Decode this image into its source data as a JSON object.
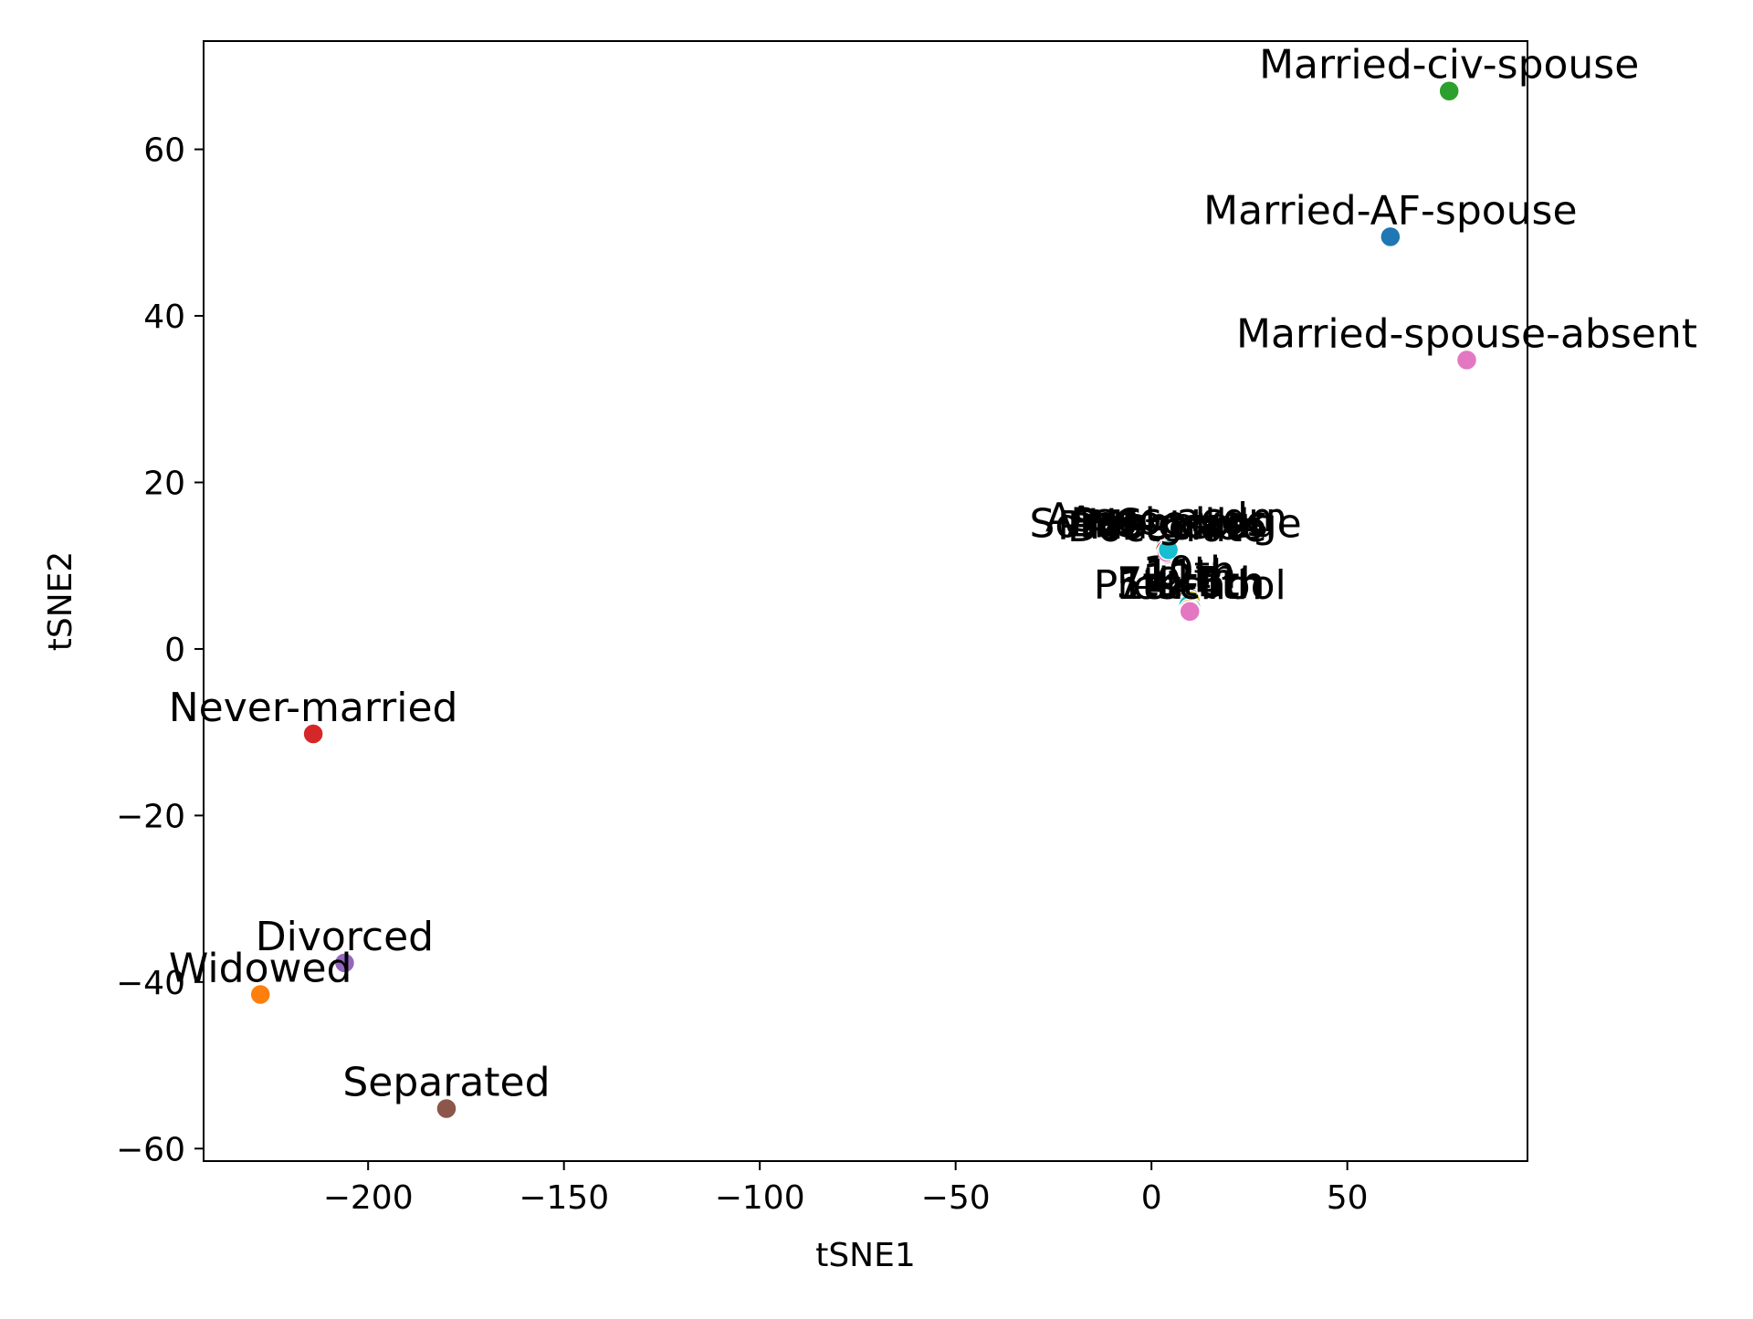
{
  "chart_data": {
    "type": "scatter",
    "title": "",
    "xlabel": "tSNE1",
    "ylabel": "tSNE2",
    "xlim": [
      -242,
      96
    ],
    "ylim": [
      -61.5,
      73
    ],
    "xticks": [
      -200,
      -150,
      -100,
      -50,
      0,
      50
    ],
    "yticks": [
      -60,
      -40,
      -20,
      0,
      20,
      40,
      60
    ],
    "xtick_labels": [
      "−200",
      "−150",
      "−100",
      "−50",
      "0",
      "50"
    ],
    "ytick_labels": [
      "−60",
      "−40",
      "−20",
      "0",
      "20",
      "40",
      "60"
    ],
    "grid": false,
    "points": [
      {
        "label": "Married-civ-spouse",
        "x": 76,
        "y": 67,
        "color": "#2ca02c"
      },
      {
        "label": "Married-AF-spouse",
        "x": 61,
        "y": 49.5,
        "color": "#1f77b4"
      },
      {
        "label": "Married-spouse-absent",
        "x": 80.5,
        "y": 34.7,
        "color": "#e377c2"
      },
      {
        "label": "Never-married",
        "x": -214,
        "y": -10.2,
        "color": "#d62728"
      },
      {
        "label": "Divorced",
        "x": -206,
        "y": -37.7,
        "color": "#9467bd"
      },
      {
        "label": "Widowed",
        "x": -227.5,
        "y": -41.5,
        "color": "#ff7f0e"
      },
      {
        "label": "Separated",
        "x": -180,
        "y": -55.2,
        "color": "#8c564b"
      },
      {
        "label": "Assoc-acdm",
        "x": 3.8,
        "y": 12.6,
        "color": "#1f77b4"
      },
      {
        "label": "Assoc-voc",
        "x": 4.1,
        "y": 12.2,
        "color": "#ff7f0e"
      },
      {
        "label": "Bachelors",
        "x": 4.5,
        "y": 12.0,
        "color": "#2ca02c"
      },
      {
        "label": "Some-college",
        "x": 3.6,
        "y": 11.9,
        "color": "#d62728"
      },
      {
        "label": "Masters",
        "x": 4.2,
        "y": 11.7,
        "color": "#9467bd"
      },
      {
        "label": "Doctorate",
        "x": 4.0,
        "y": 11.4,
        "color": "#8c564b"
      },
      {
        "label": "Prof-school",
        "x": 3.9,
        "y": 11.6,
        "color": "#e377c2"
      },
      {
        "label": "HS-grad",
        "x": 4.3,
        "y": 11.9,
        "color": "#17becf"
      },
      {
        "label": "10th",
        "x": 9.6,
        "y": 6.2,
        "color": "#7f7f7f"
      },
      {
        "label": "11th",
        "x": 9.9,
        "y": 5.8,
        "color": "#bcbd22"
      },
      {
        "label": "12th",
        "x": 9.5,
        "y": 5.3,
        "color": "#17becf"
      },
      {
        "label": "7th-8th",
        "x": 10.1,
        "y": 4.9,
        "color": "#1f77b4"
      },
      {
        "label": "9th",
        "x": 9.7,
        "y": 4.8,
        "color": "#ff7f0e"
      },
      {
        "label": "5th-6th",
        "x": 9.9,
        "y": 4.6,
        "color": "#2ca02c"
      },
      {
        "label": "1st-4th",
        "x": 10.0,
        "y": 4.5,
        "color": "#d62728"
      },
      {
        "label": "Preschool",
        "x": 9.8,
        "y": 4.5,
        "color": "#e377c2"
      }
    ]
  }
}
